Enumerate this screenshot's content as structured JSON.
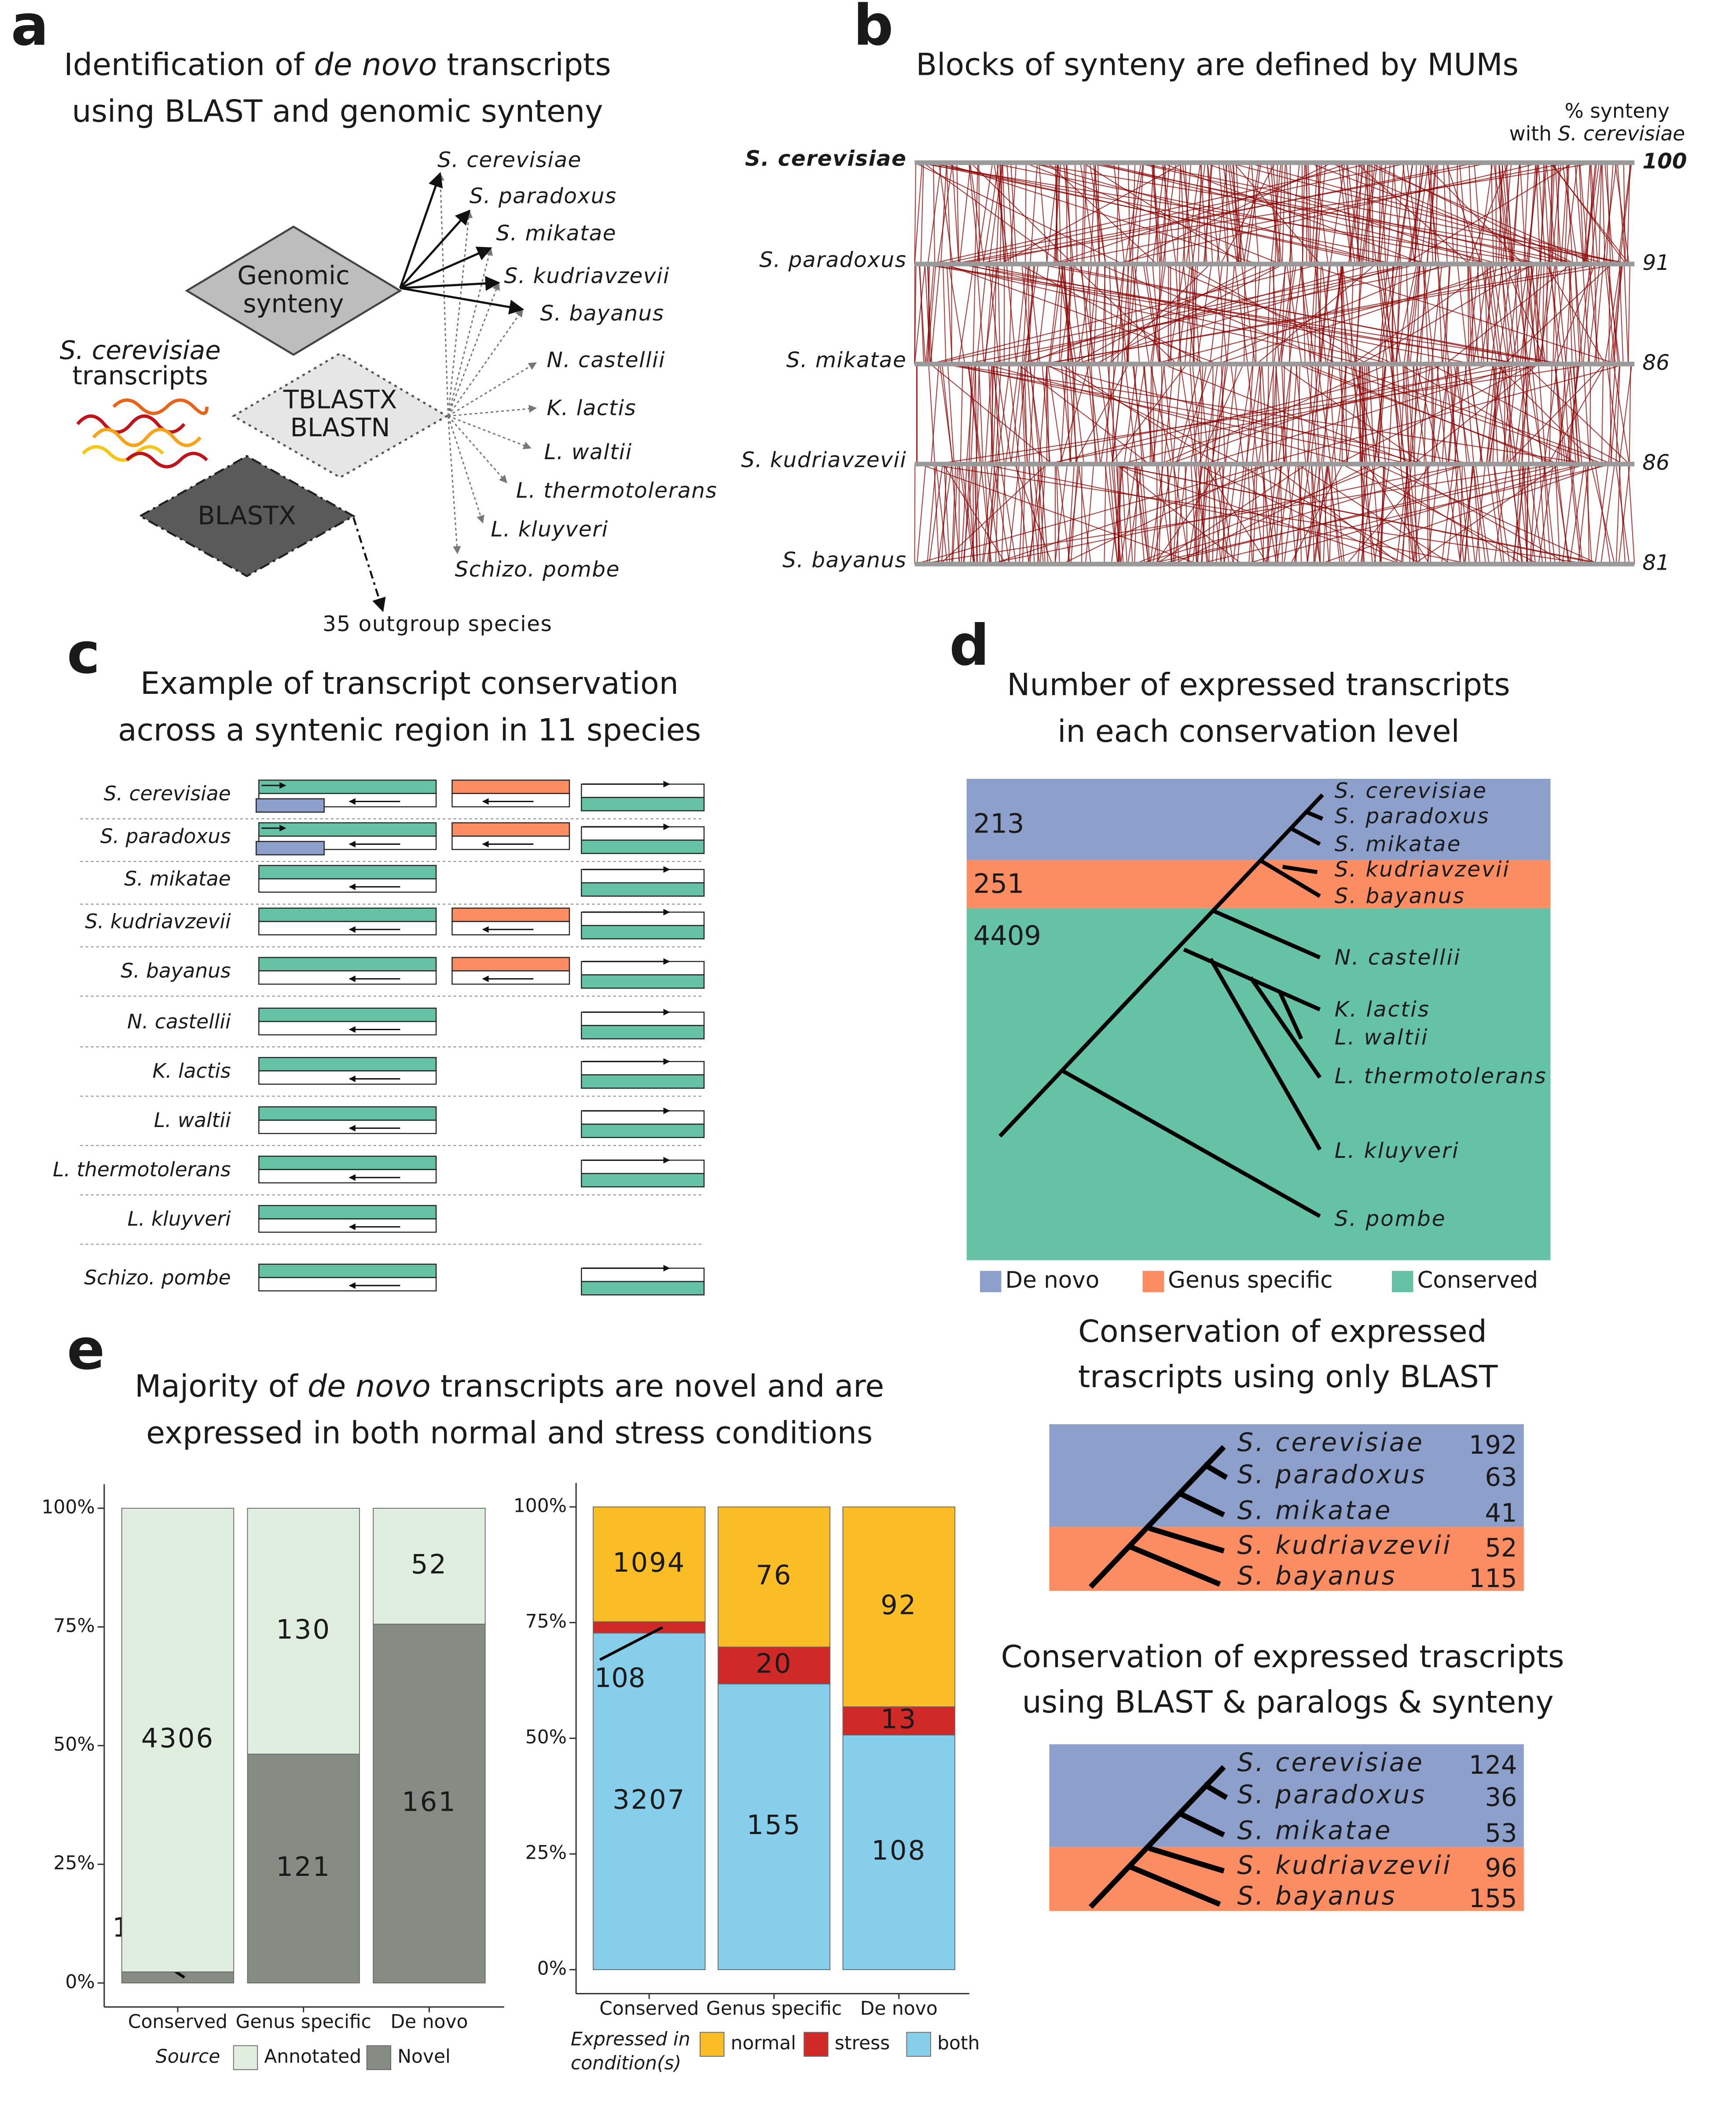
{
  "panel_a": {
    "label": "a",
    "title": [
      [
        "Identification of ",
        "de novo",
        " transcripts"
      ],
      [
        "using BLAST and genomic synteny"
      ]
    ],
    "query": [
      "S. cerevisiae",
      "transcripts"
    ],
    "methods": [
      [
        "Genomic",
        "synteny"
      ],
      [
        "TBLASTX",
        "BLASTN"
      ],
      [
        "BLASTX"
      ]
    ],
    "species": [
      "S. cerevisiae",
      "S. paradoxus",
      "S. mikatae",
      "S. kudriavzevii",
      "S. bayanus",
      "N. castellii",
      "K. lactis",
      "L. waltii",
      "L. thermotolerans",
      "L. kluyveri",
      "Schizo. pombe"
    ],
    "outgroup": "35 outgroup species"
  },
  "panel_b": {
    "label": "b",
    "title": "Blocks of synteny are defined by MUMs",
    "header": [
      [
        "% synteny"
      ],
      [
        "with ",
        "S. cerevisiae"
      ]
    ],
    "species": [
      "S. cerevisiae",
      "S. paradoxus",
      "S. mikatae",
      "S. kudriavzevii",
      "S. bayanus"
    ],
    "synteny": [
      100,
      91,
      86,
      86,
      81
    ]
  },
  "panel_c": {
    "label": "c",
    "title": [
      "Example of transcript conservation",
      "across a syntenic region in 11 species"
    ],
    "species": [
      "S. cerevisiae",
      "S. paradoxus",
      "S. mikatae",
      "S. kudriavzevii",
      "S. bayanus",
      "N. castellii",
      "K. lactis",
      "L. waltii",
      "L. thermotolerans",
      "L. kluyveri",
      "Schizo. pombe"
    ]
  },
  "panel_d": {
    "label": "d",
    "title": [
      "Number of expressed transcripts",
      "in each conservation level"
    ],
    "counts": [
      213,
      251,
      4409
    ],
    "species": [
      "S. cerevisiae",
      "S. paradoxus",
      "S. mikatae",
      "S. kudriavzevii",
      "S. bayanus",
      "N. castellii",
      "K. lactis",
      "L. waltii",
      "L. thermotolerans",
      "L. kluyveri",
      "S. pombe"
    ],
    "legend": [
      "De novo",
      "Genus specific",
      "Conserved"
    ],
    "blast_only": {
      "title": [
        "Conservation of expressed",
        "trascripts using only BLAST"
      ],
      "species": [
        "S. cerevisiae",
        "S. paradoxus",
        "S. mikatae",
        "S. kudriavzevii",
        "S. bayanus"
      ],
      "counts": [
        192,
        63,
        41,
        52,
        115
      ]
    },
    "blast_paralogs_synteny": {
      "title": [
        "Conservation of expressed trascripts",
        "using BLAST & paralogs & synteny"
      ],
      "species": [
        "S. cerevisiae",
        "S. paradoxus",
        "S. mikatae",
        "S. kudriavzevii",
        "S. bayanus"
      ],
      "counts": [
        124,
        36,
        53,
        96,
        155
      ]
    }
  },
  "panel_e": {
    "label": "e",
    "title": [
      [
        "Majority of ",
        "de novo",
        " transcripts are novel and are"
      ],
      [
        "expressed in both normal and stress conditions"
      ]
    ]
  },
  "chart_data": [
    {
      "type": "bar",
      "stacked": true,
      "normalized": true,
      "categories": [
        "Conserved",
        "Genus specific",
        "De novo"
      ],
      "series": [
        {
          "name": "Novel",
          "color": "#868b84",
          "values": [
            103,
            121,
            161
          ]
        },
        {
          "name": "Annotated",
          "color": "#dfeedf",
          "values": [
            4306,
            130,
            52
          ]
        }
      ],
      "ylim": [
        0,
        100
      ],
      "yticks": [
        {
          "value": 0,
          "label": "0%"
        },
        {
          "value": 25,
          "label": "25%"
        },
        {
          "value": 50,
          "label": "50%"
        },
        {
          "value": 75,
          "label": "75%"
        },
        {
          "value": 100,
          "label": "100%"
        }
      ],
      "legend_title": [
        "Source"
      ]
    },
    {
      "type": "bar",
      "stacked": true,
      "normalized": true,
      "categories": [
        "Conserved",
        "Genus specific",
        "De novo"
      ],
      "series": [
        {
          "name": "both",
          "color": "#87ceeb",
          "values": [
            3207,
            155,
            108
          ]
        },
        {
          "name": "stress",
          "color": "#cf2a27",
          "values": [
            108,
            20,
            13
          ]
        },
        {
          "name": "normal",
          "color": "#fbbd26",
          "values": [
            1094,
            76,
            92
          ]
        }
      ],
      "ylim": [
        0,
        100
      ],
      "yticks": [
        {
          "value": 0,
          "label": "0%"
        },
        {
          "value": 25,
          "label": "25%"
        },
        {
          "value": 50,
          "label": "50%"
        },
        {
          "value": 75,
          "label": "75%"
        },
        {
          "value": 100,
          "label": "100%"
        }
      ],
      "legend_title": [
        "Expressed in",
        "condition(s)"
      ]
    }
  ]
}
